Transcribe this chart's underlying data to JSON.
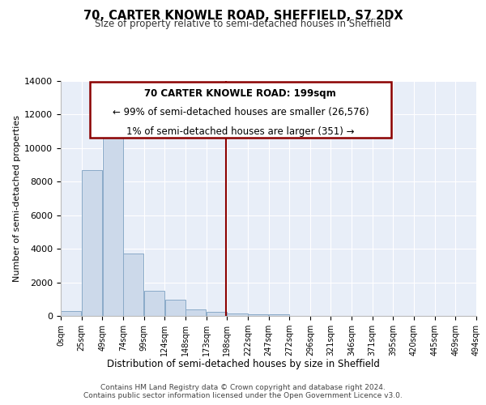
{
  "title": "70, CARTER KNOWLE ROAD, SHEFFIELD, S7 2DX",
  "subtitle": "Size of property relative to semi-detached houses in Sheffield",
  "xlabel": "Distribution of semi-detached houses by size in Sheffield",
  "ylabel": "Number of semi-detached properties",
  "footer_line1": "Contains HM Land Registry data © Crown copyright and database right 2024.",
  "footer_line2": "Contains public sector information licensed under the Open Government Licence v3.0.",
  "annotation_line1": "70 CARTER KNOWLE ROAD: 199sqm",
  "annotation_line2": "← 99% of semi-detached houses are smaller (26,576)",
  "annotation_line3": "1% of semi-detached houses are larger (351) →",
  "bin_starts": [
    0,
    25,
    50,
    75,
    100,
    125,
    150,
    175,
    200,
    225,
    250,
    275,
    300,
    325,
    350,
    375,
    400,
    425,
    450,
    475
  ],
  "bin_labels": [
    "0sqm",
    "25sqm",
    "49sqm",
    "74sqm",
    "99sqm",
    "124sqm",
    "148sqm",
    "173sqm",
    "198sqm",
    "222sqm",
    "247sqm",
    "272sqm",
    "296sqm",
    "321sqm",
    "346sqm",
    "371sqm",
    "395sqm",
    "420sqm",
    "445sqm",
    "469sqm",
    "494sqm"
  ],
  "counts": [
    300,
    8700,
    11100,
    3700,
    1500,
    950,
    380,
    220,
    155,
    105,
    80,
    0,
    0,
    0,
    0,
    0,
    0,
    0,
    0,
    0
  ],
  "bar_color": "#ccd9ea",
  "bar_edge_color": "#8aaac8",
  "vline_color": "#8b0000",
  "vline_x": 198.5,
  "annotation_box_color": "#8b0000",
  "background_color": "#e8eef8",
  "grid_color": "#ffffff",
  "ylim": [
    0,
    14000
  ],
  "yticks": [
    0,
    2000,
    4000,
    6000,
    8000,
    10000,
    12000,
    14000
  ]
}
